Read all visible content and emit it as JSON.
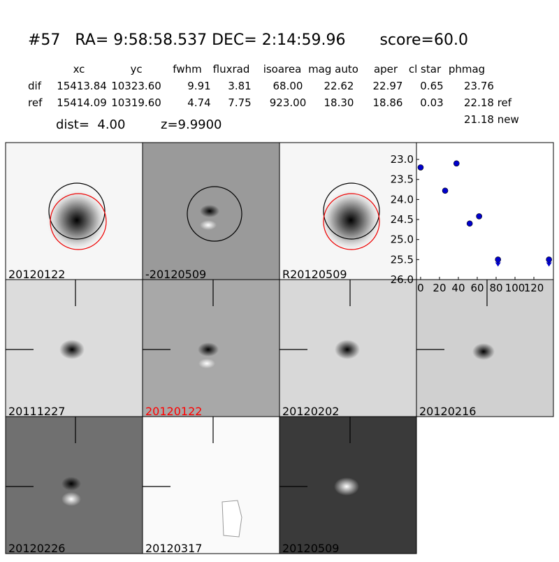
{
  "header": {
    "title": "#57   RA= 9:58:58.537 DEC= 2:14:59.96       score=60.0",
    "dist": "dist=  4.00",
    "z": "z=9.9900"
  },
  "table": {
    "columns": [
      "xc",
      "yc",
      "fwhm",
      "fluxrad",
      "isoarea",
      "mag auto",
      "aper",
      "cl star",
      "phmag"
    ],
    "rows": [
      [
        "dif",
        "15413.84",
        "10323.60",
        "9.91",
        "3.81",
        "68.00",
        "22.62",
        "22.97",
        "0.65",
        "23.76"
      ],
      [
        "ref",
        "15414.09",
        "10319.60",
        "4.74",
        "7.75",
        "923.00",
        "18.30",
        "18.86",
        "0.03",
        "22.18 ref"
      ]
    ],
    "extra": "21.18 new"
  },
  "panels": [
    {
      "label": "20120122",
      "label_color": "#000000"
    },
    {
      "label": "-20120509",
      "label_color": "#000000"
    },
    {
      "label": "R20120509",
      "label_color": "#000000"
    },
    {
      "label": "20111227",
      "label_color": "#000000"
    },
    {
      "label": "20120122",
      "label_color": "#ff0000"
    },
    {
      "label": "20120202",
      "label_color": "#000000"
    },
    {
      "label": "20120216",
      "label_color": "#000000"
    },
    {
      "label": "20120226",
      "label_color": "#000000"
    },
    {
      "label": "20120317",
      "label_color": "#000000"
    },
    {
      "label": "20120509",
      "label_color": "#000000"
    }
  ],
  "chart_data": {
    "type": "scatter",
    "series": [
      {
        "color": "#0000cc",
        "x": [
          0,
          26,
          38,
          52,
          62,
          82,
          136
        ],
        "values": [
          23.2,
          23.78,
          23.1,
          24.6,
          24.42,
          25.5,
          25.5
        ],
        "upper_limit": [
          false,
          false,
          false,
          false,
          false,
          true,
          true
        ]
      }
    ],
    "xlim": [
      -4.4,
      140.7
    ],
    "ylim": [
      26.0,
      22.58
    ],
    "y_inverted": true,
    "xticks": [
      0,
      20,
      40,
      60,
      80,
      100,
      120
    ],
    "yticks": [
      {
        "value": 23.0,
        "label": "23.0"
      },
      {
        "value": 23.5,
        "label": "23.5"
      },
      {
        "value": 24.0,
        "label": "24.0"
      },
      {
        "value": 24.5,
        "label": "24.5"
      },
      {
        "value": 25.0,
        "label": "25.0"
      },
      {
        "value": 25.5,
        "label": "25.5"
      },
      {
        "value": 26.0,
        "label": "26.0"
      }
    ]
  }
}
